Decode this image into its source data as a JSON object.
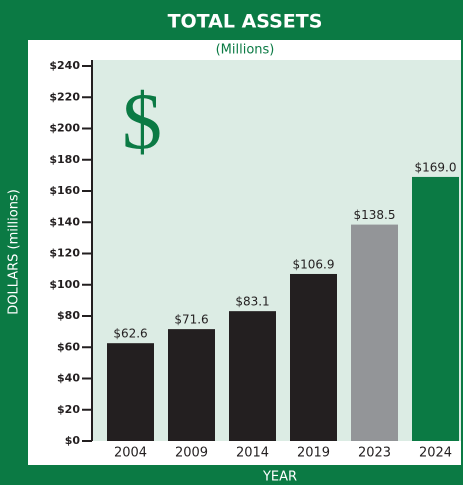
{
  "chart_data": {
    "type": "bar",
    "title": "TOTAL ASSETS",
    "subtitle": "(Millions)",
    "icon": "$",
    "x_label": "YEAR",
    "y_label": "DOLLARS (millions)",
    "categories": [
      "2004",
      "2009",
      "2014",
      "2019",
      "2023",
      "2024"
    ],
    "values": [
      62.6,
      71.6,
      83.1,
      106.9,
      138.5,
      169.0
    ],
    "value_labels": [
      "$62.6",
      "$71.6",
      "$83.1",
      "$106.9",
      "$138.5",
      "$169.0"
    ],
    "colors": [
      "#231f20",
      "#231f20",
      "#231f20",
      "#231f20",
      "#939598",
      "#0b7a44"
    ],
    "ylim": [
      0,
      240
    ],
    "yticks": [
      {
        "value": 0,
        "label": "$0"
      },
      {
        "value": 20,
        "label": "$20"
      },
      {
        "value": 40,
        "label": "$40"
      },
      {
        "value": 60,
        "label": "$60"
      },
      {
        "value": 80,
        "label": "$80"
      },
      {
        "value": 100,
        "label": "$100"
      },
      {
        "value": 120,
        "label": "$120"
      },
      {
        "value": 140,
        "label": "$140"
      },
      {
        "value": 160,
        "label": "$160"
      },
      {
        "value": 180,
        "label": "$180"
      },
      {
        "value": 200,
        "label": "$200"
      },
      {
        "value": 220,
        "label": "$220"
      },
      {
        "value": 240,
        "label": "$240"
      }
    ]
  }
}
